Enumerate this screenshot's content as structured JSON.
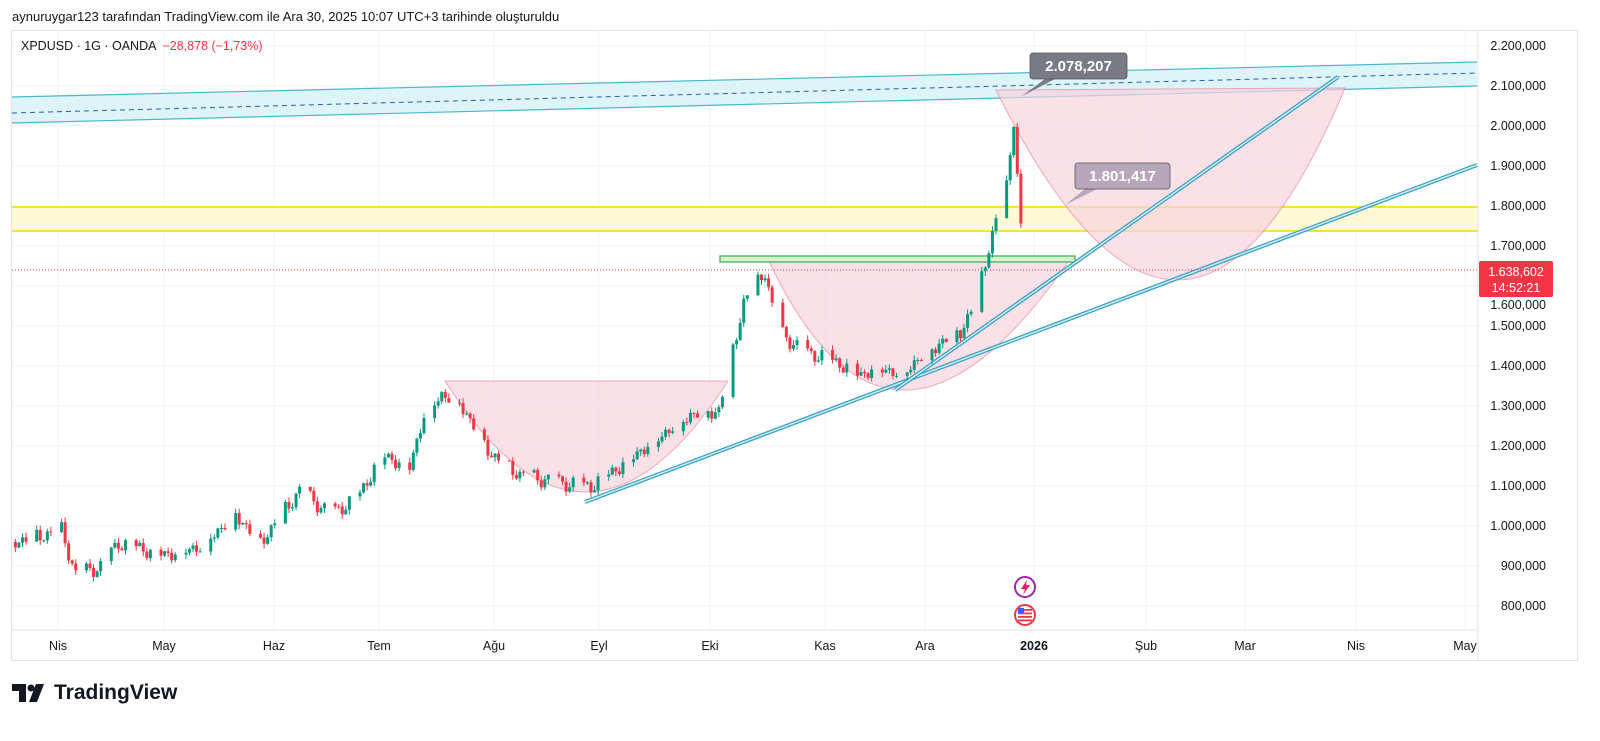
{
  "caption": "aynuruygar123 tarafından TradingView.com ile Ara 30, 2025 10:07 UTC+3 tarihinde oluşturuldu",
  "legend": {
    "symbol": "XPDUSD · 1G · OANDA",
    "change": "−28,878 (−1,73%)"
  },
  "price_tag": {
    "price": "1.638,602",
    "countdown": "14:52:21",
    "color": "#f23645"
  },
  "annotations": {
    "high_label": "2.078,207",
    "mid_label": "1.801,417"
  },
  "brand": "TradingView",
  "chart_data": {
    "type": "candlestick",
    "symbol": "XPDUSD",
    "interval": "1G",
    "yticks": [
      "2.200,000",
      "2.100,000",
      "2.000,000",
      "1.900,000",
      "1.800,000",
      "1.700,000",
      "1.600,000",
      "1.500,000",
      "1.400,000",
      "1.300,000",
      "1.200,000",
      "1.100,000",
      "1.000,000",
      "900,000",
      "800,000"
    ],
    "ylim": [
      750000,
      2250000
    ],
    "xticks": [
      "Nis",
      "May",
      "Haz",
      "Tem",
      "Ağu",
      "Eyl",
      "Eki",
      "Kas",
      "Ara",
      "2026",
      "Şub",
      "Mar",
      "Nis",
      "May"
    ],
    "close_keypoints_day_from_apr1": [
      [
        -13,
        960000
      ],
      [
        1,
        990000
      ],
      [
        5,
        880000
      ],
      [
        12,
        900000
      ],
      [
        17,
        960000
      ],
      [
        30,
        930000
      ],
      [
        40,
        950000
      ],
      [
        50,
        1030000
      ],
      [
        57,
        960000
      ],
      [
        68,
        1090000
      ],
      [
        77,
        1030000
      ],
      [
        85,
        1080000
      ],
      [
        91,
        1180000
      ],
      [
        99,
        1150000
      ],
      [
        103,
        1280000
      ],
      [
        108,
        1330000
      ],
      [
        113,
        1310000
      ],
      [
        122,
        1180000
      ],
      [
        130,
        1130000
      ],
      [
        141,
        1110000
      ],
      [
        150,
        1100000
      ],
      [
        158,
        1150000
      ],
      [
        167,
        1210000
      ],
      [
        178,
        1280000
      ],
      [
        186,
        1290000
      ],
      [
        193,
        1560000
      ],
      [
        199,
        1640000
      ],
      [
        202,
        1500000
      ],
      [
        209,
        1440000
      ],
      [
        217,
        1420000
      ],
      [
        226,
        1380000
      ],
      [
        231,
        1400000
      ],
      [
        237,
        1380000
      ],
      [
        245,
        1440000
      ],
      [
        254,
        1490000
      ],
      [
        258,
        1550000
      ],
      [
        262,
        1700000
      ],
      [
        267,
        1850000
      ],
      [
        269,
        2020000
      ],
      [
        271,
        1740000
      ],
      [
        272,
        1660000
      ],
      [
        273,
        1638602
      ]
    ],
    "last_price": 1638602
  }
}
